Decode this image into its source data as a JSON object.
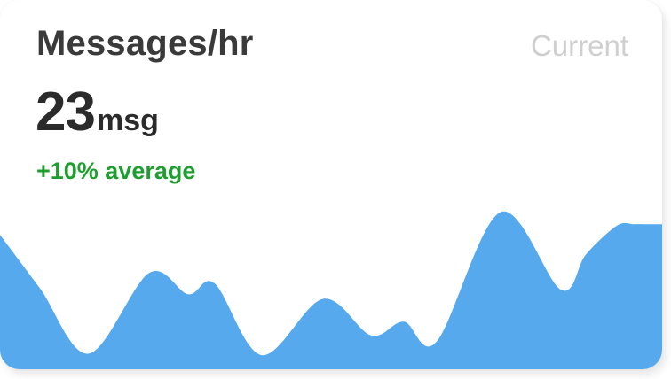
{
  "widget": {
    "title": "Messages/hr",
    "period_label": "Current",
    "value": "23",
    "unit": "msg",
    "delta_text": "+10% average"
  },
  "colors": {
    "area_fill": "#55a9ec",
    "delta_positive": "#1e9e2f"
  },
  "chart_data": {
    "type": "area",
    "title": "",
    "xlabel": "",
    "ylabel": "",
    "ylim": [
      0,
      100
    ],
    "x": [
      0,
      1,
      2,
      3,
      4,
      5,
      6,
      7,
      8,
      9,
      10,
      11,
      12,
      13,
      14,
      15,
      16,
      17,
      18,
      19,
      20
    ],
    "series": [
      {
        "name": "Messages/hr",
        "values": [
          83,
          48,
          5,
          58,
          44,
          51,
          4,
          41,
          17,
          26,
          13,
          98,
          47,
          70,
          89,
          90,
          90,
          90,
          90,
          90,
          90
        ]
      }
    ],
    "grid": false,
    "legend": "none"
  }
}
